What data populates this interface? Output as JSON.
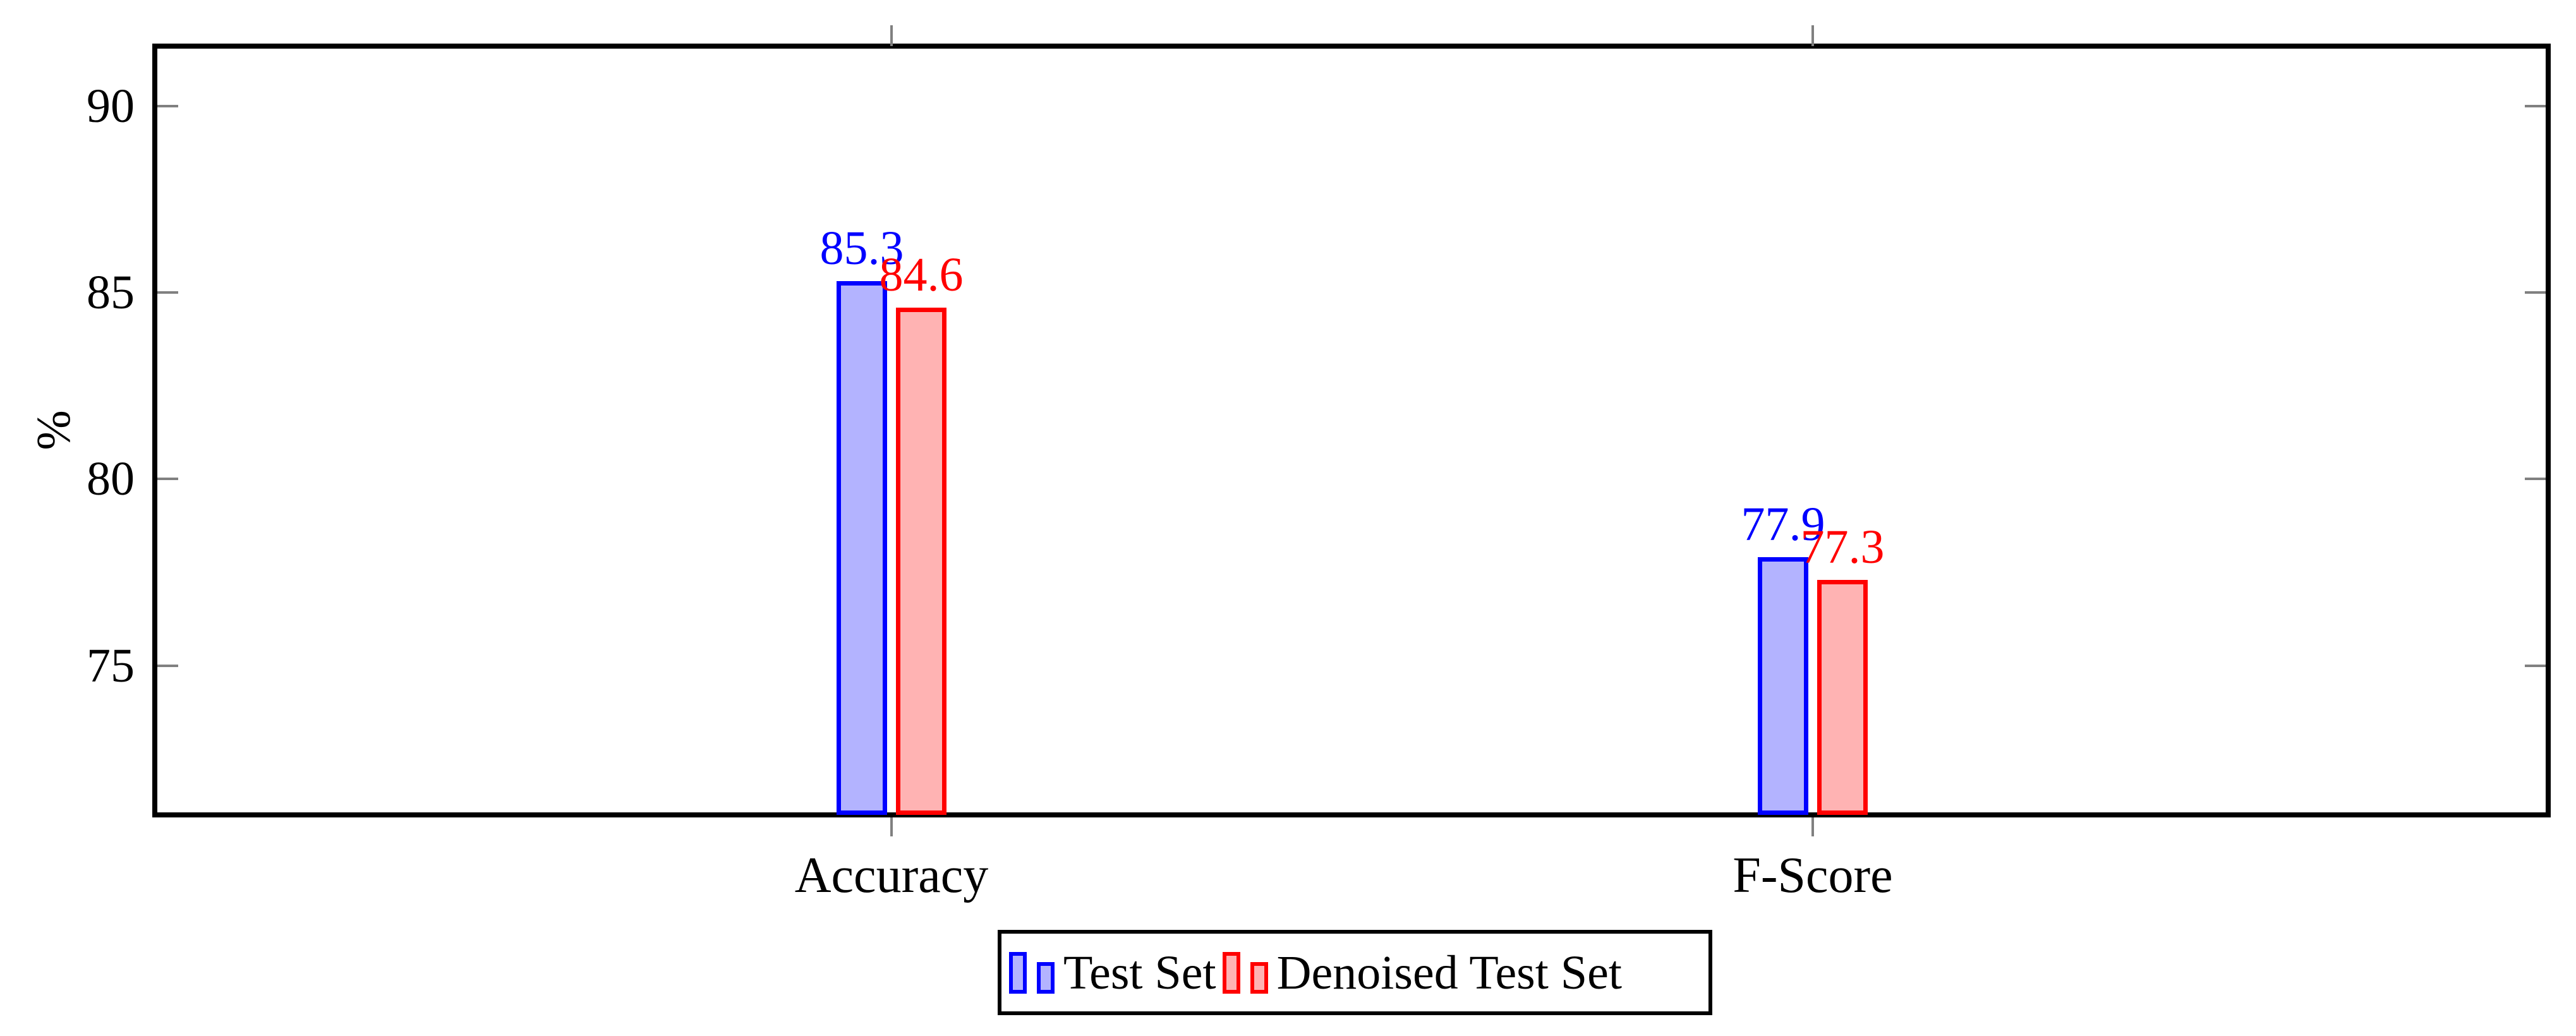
{
  "chart_data": {
    "type": "bar",
    "title": "",
    "ylabel": "%",
    "categories": [
      "Accuracy",
      "F-Score"
    ],
    "series": [
      {
        "name": "Test Set",
        "values": [
          85.3,
          77.9
        ],
        "labels": [
          "85.3",
          "77.9"
        ],
        "fill_color": "#b3b3ff",
        "edge_color": "#0000ff"
      },
      {
        "name": "Denoised Test Set",
        "values": [
          84.6,
          77.3
        ],
        "labels": [
          "84.6",
          "77.3"
        ],
        "fill_color": "#ffb3b3",
        "edge_color": "#ff0000"
      }
    ],
    "yticks": [
      75,
      80,
      85,
      90
    ],
    "ytick_labels": [
      "75",
      "80",
      "85",
      "90"
    ],
    "ylim": [
      71,
      91.6
    ],
    "bar_value_labels_shown": true,
    "grid": false,
    "legend": {
      "entries": [
        "Test Set",
        "Denoised Test Set"
      ],
      "position": "below-center"
    },
    "axis_frame_color": "#000000",
    "tick_mark_color": "#808080"
  }
}
